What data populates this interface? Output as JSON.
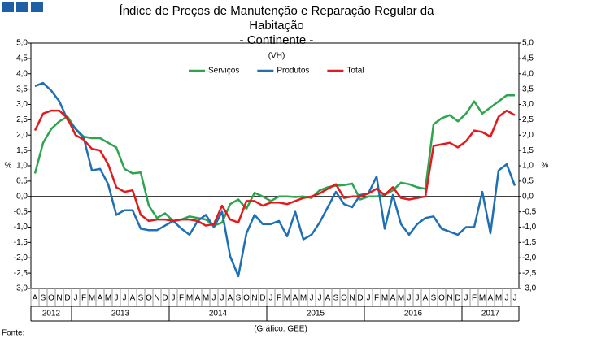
{
  "chart_data": {
    "type": "line",
    "title": [
      "Índice de Preços de Manutenção e Reparação Regular da",
      "Habitação",
      "- Continente -"
    ],
    "subtitle": "(VH)",
    "ylabel": "%",
    "y2label": "%",
    "note": "(Gráfico: GEE)",
    "source": "Fonte:",
    "categories": [
      "A",
      "S",
      "O",
      "N",
      "D",
      "J",
      "F",
      "M",
      "A",
      "M",
      "J",
      "J",
      "A",
      "S",
      "O",
      "N",
      "D",
      "J",
      "F",
      "M",
      "A",
      "M",
      "J",
      "J",
      "A",
      "S",
      "O",
      "N",
      "D",
      "J",
      "F",
      "M",
      "A",
      "M",
      "J",
      "J",
      "A",
      "S",
      "O",
      "N",
      "D",
      "J",
      "F",
      "M",
      "A",
      "M",
      "J",
      "J",
      "A",
      "S",
      "O",
      "N",
      "D",
      "J",
      "F",
      "M",
      "A",
      "M",
      "J",
      "J"
    ],
    "years": [
      "2012",
      "2013",
      "2014",
      "2015",
      "2016",
      "2017"
    ],
    "series": [
      {
        "name": "Serviços",
        "color": "#2ea44f",
        "values": [
          0.75,
          1.75,
          2.2,
          2.45,
          2.6,
          2.2,
          1.95,
          1.9,
          1.9,
          1.75,
          1.6,
          0.9,
          0.75,
          0.78,
          -0.3,
          -0.7,
          -0.55,
          -0.8,
          -0.75,
          -0.65,
          -0.7,
          -0.75,
          -0.95,
          -0.85,
          -0.25,
          -0.1,
          -0.4,
          0.12,
          0.0,
          -0.15,
          0.0,
          0.0,
          -0.02,
          0.0,
          -0.05,
          0.2,
          0.3,
          0.35,
          0.37,
          0.42,
          -0.1,
          0.0,
          0.0,
          0.05,
          0.2,
          0.45,
          0.4,
          0.3,
          0.25,
          2.35,
          2.55,
          2.65,
          2.45,
          2.7,
          3.1,
          2.7,
          2.9,
          3.1,
          3.3,
          3.3
        ]
      },
      {
        "name": "Produtos",
        "color": "#1f6fb4",
        "values": [
          3.6,
          3.7,
          3.45,
          3.1,
          2.5,
          2.2,
          1.9,
          0.85,
          0.9,
          0.4,
          -0.6,
          -0.45,
          -0.45,
          -1.05,
          -1.1,
          -1.1,
          -0.95,
          -0.8,
          -1.05,
          -1.25,
          -0.8,
          -0.6,
          -1.0,
          -0.5,
          -1.95,
          -2.6,
          -1.2,
          -0.6,
          -0.9,
          -0.9,
          -0.8,
          -1.3,
          -0.5,
          -1.4,
          -1.25,
          -0.85,
          -0.35,
          0.15,
          -0.25,
          -0.35,
          0.05,
          0.1,
          0.65,
          -1.05,
          0.05,
          -0.9,
          -1.25,
          -0.9,
          -0.7,
          -0.65,
          -1.05,
          -1.15,
          -1.25,
          -1.0,
          -1.0,
          0.15,
          -1.2,
          0.85,
          1.05,
          0.35
        ]
      },
      {
        "name": "Total",
        "color": "#e3191c",
        "values": [
          2.15,
          2.7,
          2.8,
          2.8,
          2.55,
          2.0,
          1.85,
          1.55,
          1.5,
          1.05,
          0.3,
          0.15,
          0.2,
          -0.6,
          -0.8,
          -0.75,
          -0.75,
          -0.8,
          -0.75,
          -0.75,
          -0.8,
          -0.95,
          -0.9,
          -0.3,
          -0.75,
          -0.85,
          -0.15,
          -0.15,
          -0.3,
          -0.2,
          -0.2,
          -0.25,
          -0.15,
          -0.05,
          0.0,
          0.1,
          0.25,
          0.4,
          -0.05,
          0.0,
          0.0,
          0.1,
          0.25,
          0.05,
          0.3,
          -0.05,
          -0.1,
          -0.05,
          0.0,
          1.65,
          1.7,
          1.75,
          1.6,
          1.8,
          2.15,
          2.1,
          1.95,
          2.6,
          2.8,
          2.65
        ]
      }
    ],
    "ylim": [
      -3,
      5
    ],
    "yticks": [
      {
        "value": -3,
        "label": "-3,0"
      },
      {
        "value": -2.5,
        "label": "-2,5"
      },
      {
        "value": -2,
        "label": "-2,0"
      },
      {
        "value": -1.5,
        "label": "-1,5"
      },
      {
        "value": -1,
        "label": "-1,0"
      },
      {
        "value": -0.5,
        "label": "-0,5"
      },
      {
        "value": 0,
        "label": "0,0"
      },
      {
        "value": 0.5,
        "label": "0,5"
      },
      {
        "value": 1,
        "label": "1,0"
      },
      {
        "value": 1.5,
        "label": "1,5"
      },
      {
        "value": 2,
        "label": "2,0"
      },
      {
        "value": 2.5,
        "label": "2,5"
      },
      {
        "value": 3,
        "label": "3,0"
      },
      {
        "value": 3.5,
        "label": "3,5"
      },
      {
        "value": 4,
        "label": "4,0"
      },
      {
        "value": 4.5,
        "label": "4,5"
      },
      {
        "value": 5,
        "label": "5,0"
      }
    ],
    "y2lim": [
      -3,
      5
    ],
    "y2ticks": [
      {
        "value": -3,
        "label": "-3,0"
      },
      {
        "value": -2.5,
        "label": "-2,5"
      },
      {
        "value": -2,
        "label": "-2,0"
      },
      {
        "value": -1.5,
        "label": "-1,5"
      },
      {
        "value": -1,
        "label": "-1,0"
      },
      {
        "value": -0.5,
        "label": "-0,5"
      },
      {
        "value": 0,
        "label": "0,0"
      },
      {
        "value": 0.5,
        "label": "0,5"
      },
      {
        "value": 1,
        "label": "1,0"
      },
      {
        "value": 1.5,
        "label": "1,5"
      },
      {
        "value": 2,
        "label": "2,0"
      },
      {
        "value": 2.5,
        "label": "2,5"
      },
      {
        "value": 3,
        "label": "3,0"
      },
      {
        "value": 3.5,
        "label": "3,5"
      },
      {
        "value": 4,
        "label": "4,0"
      },
      {
        "value": 4.5,
        "label": "4,5"
      },
      {
        "value": 5,
        "label": "5,0"
      }
    ],
    "grid": false,
    "legend": "top"
  }
}
